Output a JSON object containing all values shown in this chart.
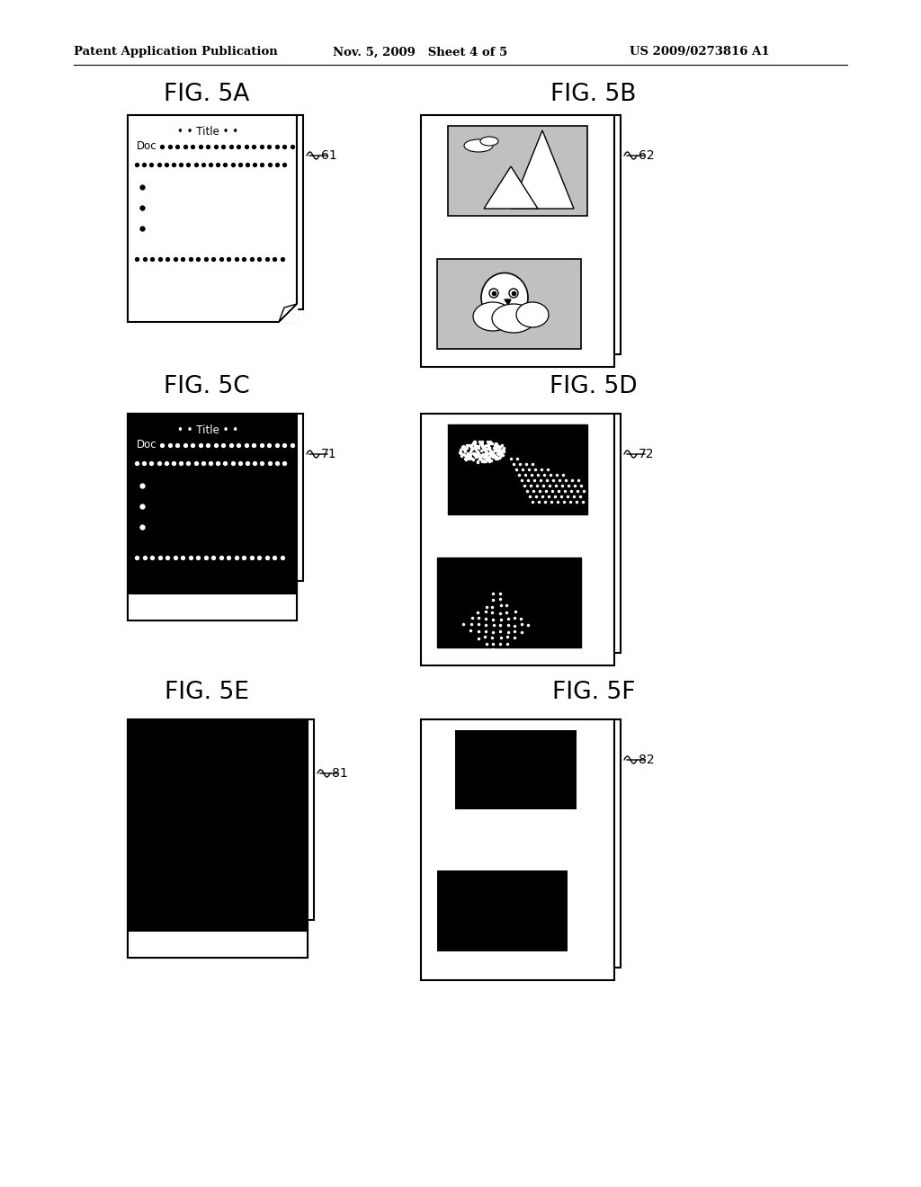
{
  "header_left": "Patent Application Publication",
  "header_mid": "Nov. 5, 2009   Sheet 4 of 5",
  "header_right": "US 2009/0273816 A1",
  "fig_labels": [
    "FIG. 5A",
    "FIG. 5B",
    "FIG. 5C",
    "FIG. 5D",
    "FIG. 5E",
    "FIG. 5F"
  ],
  "ref_labels": [
    "61",
    "62",
    "71",
    "72",
    "81",
    "82"
  ],
  "bg_color": "#ffffff",
  "black": "#000000",
  "gray_light": "#c0c0c0",
  "gray_med": "#909090"
}
